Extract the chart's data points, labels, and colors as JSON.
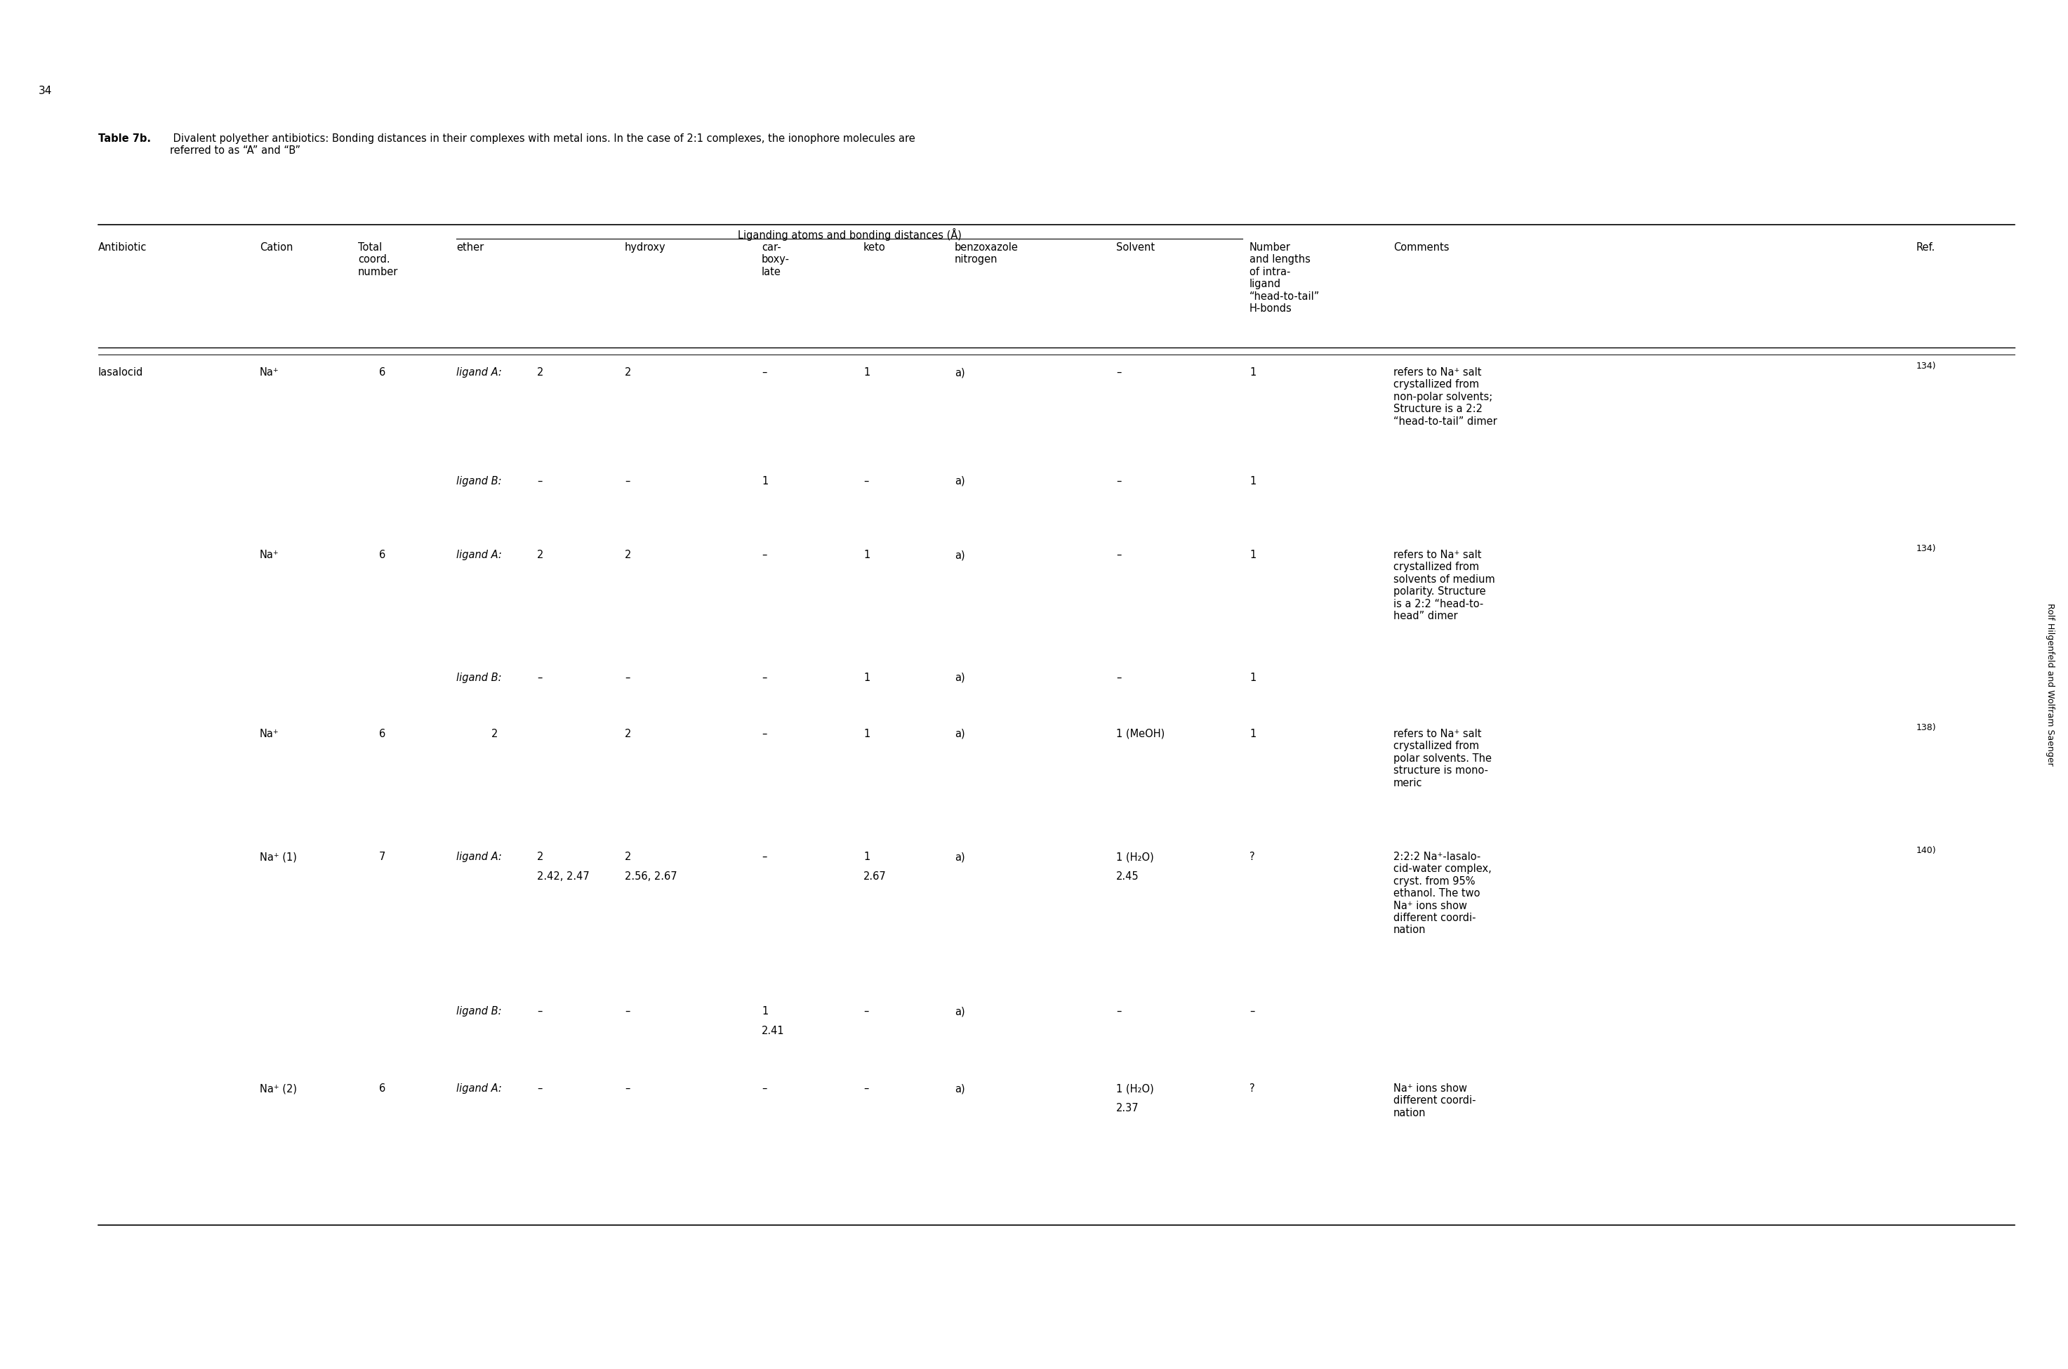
{
  "title_bold": "Table 7b.",
  "title_rest": " Divalent polyether antibiotics: Bonding distances in their complexes with metal ions. In the case of 2:1 complexes, the ionophore molecules are\nreferred to as “A” and “B”",
  "page_number": "34",
  "side_text": "Rolf Hilgenfeld and Wolfram Saenger",
  "group_header": "Liganding atoms and bonding distances (Å)",
  "background_color": "#ffffff",
  "col_headers": {
    "antibiotic": "Antibiotic",
    "cation": "Cation",
    "coord": "Total\ncoord.\nnumber",
    "ether": "ether",
    "hydroxy": "hydroxy",
    "carboxy": "car-\nboxy-\nlate",
    "keto": "keto",
    "benzoxazole": "benzoxazole\nnitrogen",
    "solvent": "Solvent",
    "hbonds": "Number\nand lengths\nof intra-\nligand\n“head-to-tail”\nH-bonds",
    "comments": "Comments",
    "ref": "Ref."
  },
  "rows": [
    {
      "antibiotic": "lasalocid",
      "cation": "Na⁺",
      "coord": "6",
      "ether_italic": "ligand A:",
      "ether_val": "2",
      "hydroxy": "2",
      "carboxy": "–",
      "keto": "1",
      "benzoxazole": "a)",
      "solvent": "–",
      "hbonds": "1",
      "comments": "refers to Na⁺ salt\ncrystallized from\nnon-polar solvents;\nStructure is a 2:2\n“head-to-tail” dimer",
      "ref": "134)"
    },
    {
      "antibiotic": "",
      "cation": "",
      "coord": "",
      "ether_italic": "ligand B:",
      "ether_val": "–",
      "hydroxy": "–",
      "carboxy": "1",
      "keto": "–",
      "benzoxazole": "a)",
      "solvent": "–",
      "hbonds": "1",
      "comments": "",
      "ref": ""
    },
    {
      "antibiotic": "",
      "cation": "Na⁺",
      "coord": "6",
      "ether_italic": "ligand A:",
      "ether_val": "2",
      "hydroxy": "2",
      "carboxy": "–",
      "keto": "1",
      "benzoxazole": "a)",
      "solvent": "–",
      "hbonds": "1",
      "comments": "refers to Na⁺ salt\ncrystallized from\nsolvents of medium\npolarity. Structure\nis a 2:2 “head-to-\nhead” dimer",
      "ref": "134)"
    },
    {
      "antibiotic": "",
      "cation": "",
      "coord": "",
      "ether_italic": "ligand B:",
      "ether_val": "–",
      "hydroxy": "–",
      "carboxy": "–",
      "keto": "1",
      "benzoxazole": "a)",
      "solvent": "–",
      "hbonds": "1",
      "comments": "",
      "ref": ""
    },
    {
      "antibiotic": "",
      "cation": "Na⁺",
      "coord": "6",
      "ether_italic": "",
      "ether_val": "2",
      "hydroxy": "2",
      "carboxy": "–",
      "keto": "1",
      "benzoxazole": "a)",
      "solvent": "1 (MeOH)",
      "hbonds": "1",
      "comments": "refers to Na⁺ salt\ncrystallized from\npolar solvents. The\nstructure is mono-\nmeric",
      "ref": "138)"
    },
    {
      "antibiotic": "",
      "cation": "Na⁺ (1)",
      "coord": "7",
      "ether_italic": "ligand A:",
      "ether_val": "2",
      "ether_val2": "2.42, 2.47",
      "hydroxy": "2",
      "hydroxy2": "2.56, 2.67",
      "carboxy": "–",
      "keto": "1",
      "keto2": "2.67",
      "benzoxazole": "a)",
      "solvent": "1 (H₂O)",
      "solvent2": "2.45",
      "hbonds": "?",
      "comments": "2:2:2 Na⁺-lasalo-\ncid-water complex,\ncryst. from 95%\nethanol. The two\nNa⁺ ions show\ndifferent coordi-\nnation",
      "ref": "140)"
    },
    {
      "antibiotic": "",
      "cation": "",
      "coord": "",
      "ether_italic": "ligand B:",
      "ether_val": "–",
      "hydroxy": "–",
      "carboxy": "1",
      "carboxy2": "2.41",
      "keto": "–",
      "benzoxazole": "a)",
      "solvent": "–",
      "hbonds": "–",
      "comments": "",
      "ref": ""
    },
    {
      "antibiotic": "",
      "cation": "Na⁺ (2)",
      "coord": "6",
      "ether_italic": "ligand A:",
      "ether_val": "–",
      "hydroxy": "–",
      "carboxy": "–",
      "keto": "–",
      "benzoxazole": "a)",
      "solvent": "1 (H₂O)",
      "solvent2": "2.37",
      "hbonds": "?",
      "comments": "Na⁺ ions show\ndifferent coordi-\nnation",
      "ref": ""
    }
  ]
}
